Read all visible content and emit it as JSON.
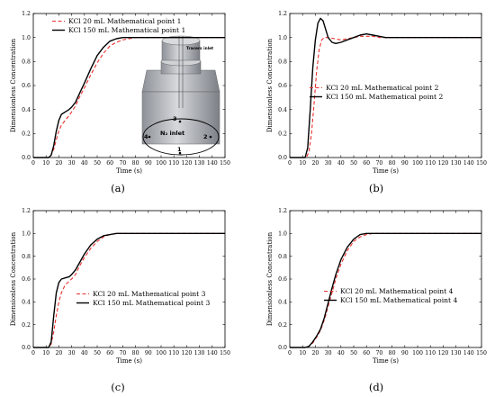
{
  "chart_data": [
    {
      "panel": "(a)",
      "type": "line",
      "xlabel": "Time (s)",
      "ylabel": "Dimensionless Concentration",
      "xlim": [
        0,
        150
      ],
      "ylim": [
        0,
        1.2
      ],
      "xticks": [
        0,
        10,
        20,
        30,
        40,
        50,
        60,
        70,
        80,
        90,
        100,
        110,
        120,
        130,
        140,
        150
      ],
      "yticks": [
        0.0,
        0.2,
        0.4,
        0.6,
        0.8,
        1.0,
        1.2
      ],
      "legend_position": "top-left",
      "series": [
        {
          "name": "KCl 20 mL Mathematical point 1",
          "color": "#e8302e",
          "dash": "dashed",
          "x": [
            0,
            10,
            12,
            14,
            16,
            18,
            20,
            22,
            25,
            28,
            30,
            33,
            36,
            40,
            45,
            50,
            55,
            60,
            65,
            70,
            75,
            80,
            90,
            100,
            150
          ],
          "y": [
            0,
            0,
            0,
            0.02,
            0.07,
            0.15,
            0.22,
            0.27,
            0.31,
            0.35,
            0.38,
            0.43,
            0.5,
            0.58,
            0.69,
            0.79,
            0.87,
            0.93,
            0.96,
            0.98,
            0.99,
            1.0,
            1.0,
            1.0,
            1.0
          ]
        },
        {
          "name": "KCl 150 mL Mathematical point 1",
          "color": "#000000",
          "dash": "solid",
          "x": [
            0,
            10,
            12,
            14,
            16,
            18,
            20,
            22,
            25,
            28,
            30,
            33,
            36,
            40,
            45,
            50,
            55,
            60,
            65,
            70,
            75,
            80,
            90,
            100,
            150
          ],
          "y": [
            0,
            0,
            0,
            0.02,
            0.1,
            0.22,
            0.31,
            0.36,
            0.38,
            0.4,
            0.42,
            0.46,
            0.53,
            0.62,
            0.74,
            0.85,
            0.92,
            0.97,
            0.99,
            1.0,
            1.0,
            1.0,
            1.0,
            1.0,
            1.0
          ]
        }
      ],
      "inset": {
        "top_label": "Tracers inlet",
        "bottom_label": "N₂ inlet",
        "points": [
          "1",
          "2",
          "3",
          "4"
        ]
      }
    },
    {
      "panel": "(b)",
      "type": "line",
      "xlabel": "Time (s)",
      "ylabel": "Dimensionless Concentration",
      "xlim": [
        0,
        150
      ],
      "ylim": [
        0,
        1.2
      ],
      "xticks": [
        0,
        10,
        20,
        30,
        40,
        50,
        60,
        70,
        80,
        90,
        100,
        110,
        120,
        130,
        140,
        150
      ],
      "yticks": [
        0.0,
        0.2,
        0.4,
        0.6,
        0.8,
        1.0,
        1.2
      ],
      "legend_position": "center-right",
      "series": [
        {
          "name": "KCl 20 mL Mathematical point 2",
          "color": "#e8302e",
          "dash": "dashed",
          "x": [
            0,
            10,
            13,
            15,
            17,
            19,
            21,
            23,
            25,
            27,
            30,
            35,
            40,
            45,
            50,
            55,
            60,
            65,
            70,
            80,
            90,
            100,
            150
          ],
          "y": [
            0,
            0,
            0,
            0.05,
            0.2,
            0.45,
            0.72,
            0.9,
            0.98,
            1.0,
            1.0,
            0.99,
            0.98,
            0.99,
            1.0,
            1.01,
            1.01,
            1.01,
            1.0,
            1.0,
            1.0,
            1.0,
            1.0
          ]
        },
        {
          "name": "KCl 150 mL Mathematical point 2",
          "color": "#000000",
          "dash": "solid",
          "x": [
            0,
            10,
            12,
            14,
            16,
            18,
            20,
            22,
            24,
            26,
            28,
            30,
            33,
            36,
            40,
            45,
            50,
            55,
            60,
            65,
            70,
            75,
            80,
            90,
            100,
            150
          ],
          "y": [
            0,
            0,
            0,
            0.08,
            0.4,
            0.75,
            0.98,
            1.12,
            1.16,
            1.14,
            1.07,
            1.0,
            0.96,
            0.95,
            0.96,
            0.98,
            1.0,
            1.02,
            1.03,
            1.02,
            1.01,
            1.0,
            1.0,
            1.0,
            1.0,
            1.0
          ]
        }
      ]
    },
    {
      "panel": "(c)",
      "type": "line",
      "xlabel": "Time (s)",
      "ylabel": "Dimensionless Concentration",
      "xlim": [
        0,
        150
      ],
      "ylim": [
        0,
        1.2
      ],
      "xticks": [
        0,
        10,
        20,
        30,
        40,
        50,
        60,
        70,
        80,
        90,
        100,
        110,
        120,
        130,
        140,
        150
      ],
      "yticks": [
        0.0,
        0.2,
        0.4,
        0.6,
        0.8,
        1.0,
        1.2
      ],
      "legend_position": "center",
      "series": [
        {
          "name": "KCl 20 mL Mathematical point 3",
          "color": "#e8302e",
          "dash": "dashed",
          "x": [
            0,
            10,
            12,
            14,
            16,
            18,
            20,
            22,
            25,
            28,
            30,
            33,
            36,
            40,
            45,
            50,
            55,
            60,
            65,
            70,
            80,
            90,
            100,
            150
          ],
          "y": [
            0,
            0,
            0,
            0.03,
            0.14,
            0.28,
            0.4,
            0.48,
            0.55,
            0.58,
            0.6,
            0.64,
            0.71,
            0.79,
            0.87,
            0.93,
            0.97,
            0.99,
            1.0,
            1.0,
            1.0,
            1.0,
            1.0,
            1.0
          ]
        },
        {
          "name": "KCl 150 mL Mathematical point 3",
          "color": "#000000",
          "dash": "solid",
          "x": [
            0,
            10,
            12,
            14,
            16,
            18,
            20,
            22,
            25,
            28,
            30,
            33,
            36,
            40,
            45,
            50,
            55,
            60,
            65,
            70,
            80,
            90,
            100,
            150
          ],
          "y": [
            0,
            0,
            0,
            0.05,
            0.28,
            0.48,
            0.57,
            0.6,
            0.61,
            0.62,
            0.64,
            0.68,
            0.74,
            0.82,
            0.9,
            0.95,
            0.98,
            0.99,
            1.0,
            1.0,
            1.0,
            1.0,
            1.0,
            1.0
          ]
        }
      ]
    },
    {
      "panel": "(d)",
      "type": "line",
      "xlabel": "Time (s)",
      "ylabel": "Dimensionless Concentration",
      "xlim": [
        0,
        150
      ],
      "ylim": [
        0,
        1.2
      ],
      "xticks": [
        0,
        10,
        20,
        30,
        40,
        50,
        60,
        70,
        80,
        90,
        100,
        110,
        120,
        130,
        140,
        150
      ],
      "yticks": [
        0.0,
        0.2,
        0.4,
        0.6,
        0.8,
        1.0,
        1.2
      ],
      "legend_position": "center-right",
      "series": [
        {
          "name": "KCl 20 mL Mathematical point 4",
          "color": "#e8302e",
          "dash": "dashed",
          "x": [
            0,
            12,
            15,
            18,
            21,
            24,
            27,
            30,
            33,
            36,
            40,
            45,
            50,
            55,
            60,
            65,
            70,
            80,
            90,
            100,
            150
          ],
          "y": [
            0,
            0,
            0.01,
            0.04,
            0.09,
            0.15,
            0.24,
            0.36,
            0.48,
            0.6,
            0.73,
            0.85,
            0.93,
            0.97,
            0.99,
            1.0,
            1.0,
            1.0,
            1.0,
            1.0,
            1.0
          ]
        },
        {
          "name": "KCl 150 mL Mathematical point 4",
          "color": "#000000",
          "dash": "solid",
          "x": [
            0,
            12,
            15,
            18,
            21,
            24,
            27,
            30,
            33,
            36,
            40,
            45,
            50,
            55,
            60,
            65,
            70,
            80,
            90,
            100,
            150
          ],
          "y": [
            0,
            0,
            0.01,
            0.05,
            0.1,
            0.16,
            0.26,
            0.39,
            0.52,
            0.64,
            0.77,
            0.88,
            0.95,
            0.99,
            1.0,
            1.0,
            1.0,
            1.0,
            1.0,
            1.0,
            1.0
          ]
        }
      ]
    }
  ]
}
